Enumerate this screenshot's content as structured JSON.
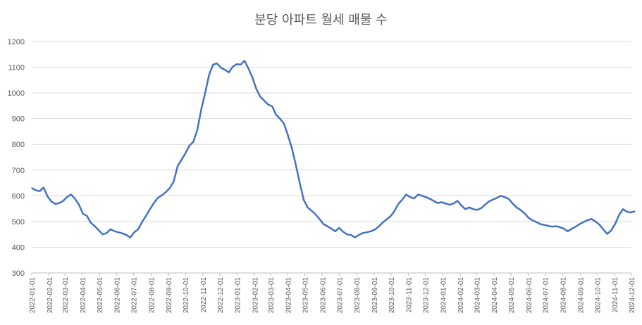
{
  "chart_data": {
    "type": "line",
    "title": "분당 아파트 월세 매물 수",
    "xlabel": "",
    "ylabel": "",
    "ylim": [
      300,
      1200
    ],
    "y_ticks": [
      300,
      400,
      500,
      600,
      700,
      800,
      900,
      1000,
      1100,
      1200
    ],
    "x_tick_labels": [
      "2022-01-01",
      "2022-02-01",
      "2022-03-01",
      "2022-04-01",
      "2022-05-01",
      "2022-06-01",
      "2022-07-01",
      "2022-08-01",
      "2022-09-01",
      "2022-10-01",
      "2022-11-01",
      "2022-12-01",
      "2023-01-01",
      "2023-02-01",
      "2023-03-01",
      "2023-04-01",
      "2023-05-01",
      "2023-06-01",
      "2023-07-01",
      "2023-08-01",
      "2023-09-01",
      "2023-10-01",
      "2023-11-01",
      "2023-12-01",
      "2024-01-01",
      "2024-02-01",
      "2024-03-01",
      "2024-04-01",
      "2024-05-01",
      "2024-06-01",
      "2024-07-01",
      "2024-08-01",
      "2024-09-01",
      "2024-10-01",
      "2024-11-01",
      "2024-12-01"
    ],
    "grid": true,
    "legend": "none",
    "line_color": "#4472C4",
    "series": [
      {
        "x": [
          "2022-01-01",
          "2022-01-08",
          "2022-01-15",
          "2022-01-22",
          "2022-01-29",
          "2022-02-05",
          "2022-02-12",
          "2022-02-19",
          "2022-02-26",
          "2022-03-05",
          "2022-03-12",
          "2022-03-19",
          "2022-03-26",
          "2022-04-02",
          "2022-04-09",
          "2022-04-16",
          "2022-04-23",
          "2022-04-30",
          "2022-05-07",
          "2022-05-14",
          "2022-05-21",
          "2022-05-28",
          "2022-06-04",
          "2022-06-11",
          "2022-06-18",
          "2022-06-25",
          "2022-07-02",
          "2022-07-09",
          "2022-07-16",
          "2022-07-23",
          "2022-07-30",
          "2022-08-06",
          "2022-08-13",
          "2022-08-20",
          "2022-08-27",
          "2022-09-03",
          "2022-09-10",
          "2022-09-17",
          "2022-09-24",
          "2022-10-01",
          "2022-10-08",
          "2022-10-15",
          "2022-10-22",
          "2022-10-29",
          "2022-11-05",
          "2022-11-12",
          "2022-11-19",
          "2022-11-26",
          "2022-12-03",
          "2022-12-10",
          "2022-12-17",
          "2022-12-24",
          "2022-12-31",
          "2023-01-07",
          "2023-01-14",
          "2023-01-21",
          "2023-01-28",
          "2023-02-04",
          "2023-02-11",
          "2023-02-18",
          "2023-02-25",
          "2023-03-04",
          "2023-03-11",
          "2023-03-18",
          "2023-03-25",
          "2023-04-01",
          "2023-04-08",
          "2023-04-15",
          "2023-04-22",
          "2023-04-29",
          "2023-05-06",
          "2023-05-13",
          "2023-05-20",
          "2023-05-27",
          "2023-06-03",
          "2023-06-10",
          "2023-06-17",
          "2023-06-24",
          "2023-07-01",
          "2023-07-08",
          "2023-07-15",
          "2023-07-22",
          "2023-07-29",
          "2023-08-05",
          "2023-08-12",
          "2023-08-19",
          "2023-08-26",
          "2023-09-02",
          "2023-09-09",
          "2023-09-16",
          "2023-09-23",
          "2023-09-30",
          "2023-10-07",
          "2023-10-14",
          "2023-10-21",
          "2023-10-28",
          "2023-11-04",
          "2023-11-11",
          "2023-11-18",
          "2023-11-25",
          "2023-12-02",
          "2023-12-09",
          "2023-12-16",
          "2023-12-23",
          "2023-12-30",
          "2024-01-06",
          "2024-01-13",
          "2024-01-20",
          "2024-01-27",
          "2024-02-03",
          "2024-02-10",
          "2024-02-17",
          "2024-02-24",
          "2024-03-02",
          "2024-03-09",
          "2024-03-16",
          "2024-03-23",
          "2024-03-30",
          "2024-04-06",
          "2024-04-13",
          "2024-04-20",
          "2024-04-27",
          "2024-05-04",
          "2024-05-11",
          "2024-05-18",
          "2024-05-25",
          "2024-06-01",
          "2024-06-08",
          "2024-06-15",
          "2024-06-22",
          "2024-06-29",
          "2024-07-06",
          "2024-07-13",
          "2024-07-20",
          "2024-07-27",
          "2024-08-03",
          "2024-08-10",
          "2024-08-17",
          "2024-08-24",
          "2024-08-31",
          "2024-09-07",
          "2024-09-14",
          "2024-09-21",
          "2024-09-28",
          "2024-10-05",
          "2024-10-12",
          "2024-10-19",
          "2024-10-26",
          "2024-11-02",
          "2024-11-09",
          "2024-11-16",
          "2024-11-23",
          "2024-11-30",
          "2024-12-07"
        ],
        "values": [
          630,
          622,
          618,
          632,
          598,
          578,
          568,
          572,
          580,
          596,
          605,
          588,
          565,
          530,
          522,
          495,
          482,
          466,
          450,
          455,
          470,
          462,
          458,
          454,
          448,
          438,
          458,
          470,
          498,
          522,
          548,
          572,
          592,
          602,
          614,
          630,
          655,
          715,
          740,
          765,
          795,
          810,
          855,
          935,
          1000,
          1070,
          1110,
          1115,
          1098,
          1090,
          1080,
          1102,
          1112,
          1110,
          1125,
          1095,
          1060,
          1015,
          985,
          970,
          955,
          948,
          915,
          900,
          880,
          835,
          785,
          720,
          650,
          585,
          555,
          542,
          528,
          510,
          490,
          482,
          472,
          462,
          475,
          460,
          450,
          448,
          438,
          448,
          455,
          458,
          462,
          468,
          480,
          495,
          508,
          520,
          540,
          568,
          585,
          605,
          595,
          590,
          605,
          600,
          595,
          588,
          580,
          572,
          575,
          570,
          565,
          570,
          580,
          562,
          548,
          555,
          548,
          545,
          552,
          565,
          578,
          585,
          592,
          600,
          595,
          588,
          570,
          555,
          545,
          532,
          515,
          505,
          498,
          490,
          487,
          483,
          480,
          482,
          478,
          472,
          462,
          472,
          480,
          490,
          498,
          505,
          510,
          500,
          488,
          470,
          452,
          465,
          490,
          525,
          548,
          538,
          535,
          540
        ]
      }
    ]
  }
}
